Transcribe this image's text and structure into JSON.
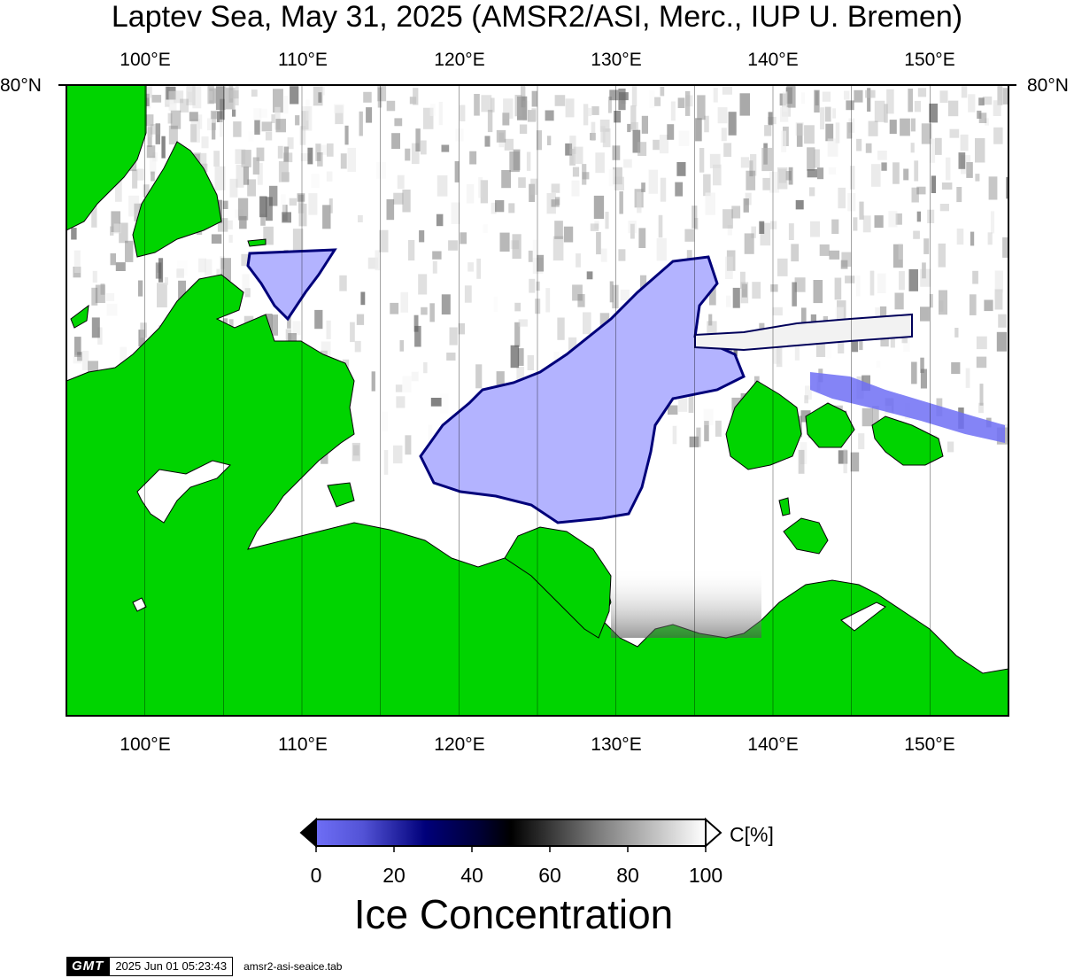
{
  "title": "Laptev Sea, May 31, 2025 (AMSR2/ASI, Merc., IUP U. Bremen)",
  "axes": {
    "longitude_labels": [
      "100°E",
      "110°E",
      "120°E",
      "130°E",
      "140°E",
      "150°E"
    ],
    "latitude_label_left": "80°N",
    "latitude_label_right": "80°N",
    "longitude_range": [
      95,
      155
    ],
    "gridline_longitudes": [
      100,
      105,
      110,
      115,
      120,
      125,
      130,
      135,
      140,
      145,
      150
    ]
  },
  "colorbar": {
    "ticks": [
      "0",
      "20",
      "40",
      "60",
      "80",
      "100"
    ],
    "unit": "C[%]",
    "title": "Ice Concentration",
    "colors": {
      "open_water": "#b3b3ff",
      "low": "#6e6ef5",
      "mid": "#00005a",
      "dark": "#000000",
      "high": "#ffffff"
    }
  },
  "colors": {
    "land": "#00d400",
    "open_water": "#b3b3ff",
    "ice": "#ffffff"
  },
  "footer": {
    "logo": "GMT",
    "timestamp": "2025 Jun 01 05:23:43",
    "filename": "amsr2-asi-seaice.tab"
  }
}
